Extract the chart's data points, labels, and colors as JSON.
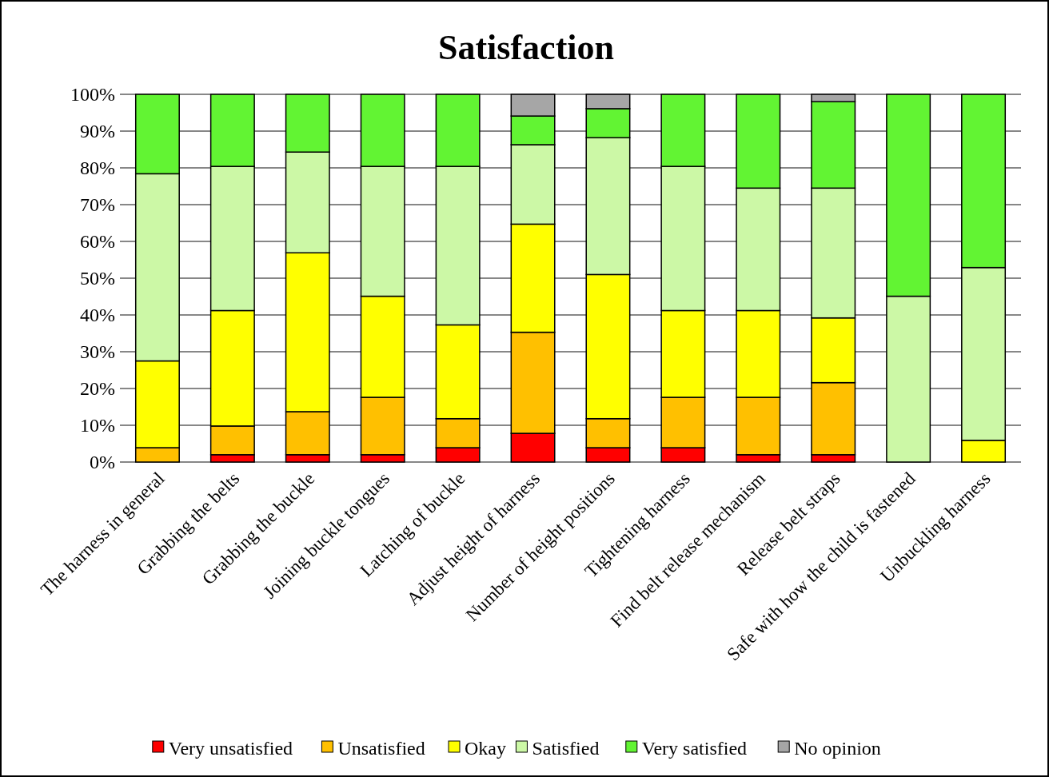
{
  "chart_data": {
    "type": "bar",
    "title": "Satisfaction",
    "stacked": true,
    "categories": [
      "The harness in general",
      "Grabbing the belts",
      "Grabbing the buckle",
      "Joining buckle tongues",
      "Latching of buckle",
      "Adjust height of harness",
      "Number of height positions",
      "Tightening harness",
      "Find belt release mechanism",
      "Release belt straps",
      "Safe with how the child is fastened",
      "Unbuckling harness"
    ],
    "series": [
      {
        "name": "Very unsatisfied",
        "color": "#ff0000",
        "values": [
          0,
          2,
          2,
          2,
          3.9,
          7.8,
          3.9,
          3.9,
          2,
          2,
          0,
          0
        ]
      },
      {
        "name": "Unsatisfied",
        "color": "#ffc000",
        "values": [
          3.9,
          7.8,
          11.7,
          15.6,
          7.9,
          27.5,
          7.9,
          13.7,
          15.6,
          19.6,
          0,
          0
        ]
      },
      {
        "name": "Okay",
        "color": "#ffff00",
        "values": [
          23.6,
          31.4,
          43.2,
          27.5,
          25.5,
          29.4,
          39.2,
          23.6,
          23.6,
          17.6,
          0,
          5.9
        ]
      },
      {
        "name": "Satisfied",
        "color": "#ccf8a6",
        "values": [
          50.9,
          39.2,
          27.4,
          35.3,
          43.1,
          21.6,
          37.2,
          39.2,
          33.3,
          35.3,
          45.1,
          47
        ]
      },
      {
        "name": "Very satisfied",
        "color": "#62f433",
        "values": [
          21.6,
          19.6,
          15.7,
          19.6,
          19.6,
          7.8,
          7.9,
          19.6,
          25.5,
          23.5,
          54.9,
          47.1
        ]
      },
      {
        "name": "No opinion",
        "color": "#a6a6a6",
        "values": [
          0,
          0,
          0,
          0,
          0,
          5.9,
          3.9,
          0,
          0,
          2,
          0,
          0
        ]
      }
    ],
    "ylim": [
      0,
      100
    ],
    "yticks": [
      {
        "value": 0,
        "label": "0%"
      },
      {
        "value": 10,
        "label": "10%"
      },
      {
        "value": 20,
        "label": "20%"
      },
      {
        "value": 30,
        "label": "30%"
      },
      {
        "value": 40,
        "label": "40%"
      },
      {
        "value": 50,
        "label": "50%"
      },
      {
        "value": 60,
        "label": "60%"
      },
      {
        "value": 70,
        "label": "70%"
      },
      {
        "value": 80,
        "label": "80%"
      },
      {
        "value": 90,
        "label": "90%"
      },
      {
        "value": 100,
        "label": "100%"
      }
    ],
    "grid": "y",
    "legend": "bottom"
  }
}
